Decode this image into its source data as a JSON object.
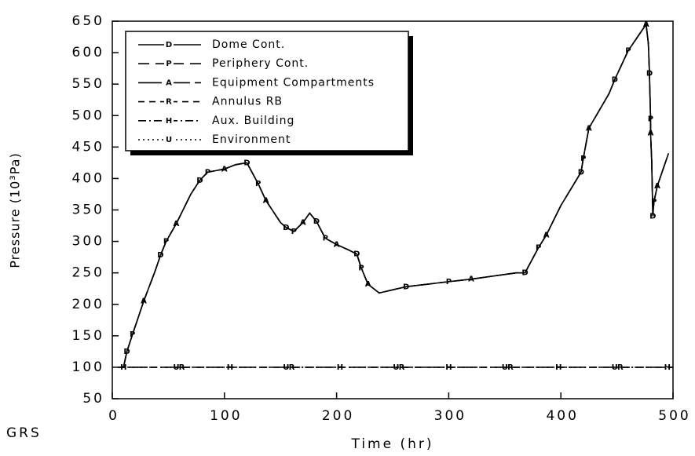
{
  "chart_data": {
    "type": "line",
    "xlabel": "Time (hr)",
    "ylabel": "Pressure (10³Pa)",
    "corner_text": "GRS",
    "xlim": [
      0,
      500
    ],
    "ylim": [
      50,
      650
    ],
    "xticks": [
      0,
      100,
      200,
      300,
      400,
      500
    ],
    "yticks": [
      50,
      100,
      150,
      200,
      250,
      300,
      350,
      400,
      450,
      500,
      550,
      600,
      650
    ],
    "legend": "upper left",
    "series": [
      {
        "name": "Dome Cont.",
        "marker": "D",
        "color": "#000000",
        "dash": "none",
        "x": [
          10,
          13,
          18,
          28,
          38,
          43,
          48,
          57,
          70,
          78,
          85,
          100,
          110,
          120,
          130,
          137,
          150,
          155,
          162,
          170,
          176,
          182,
          190,
          200,
          210,
          218,
          222,
          228,
          238,
          262,
          300,
          320,
          360,
          368,
          380,
          387,
          400,
          418,
          420,
          425,
          443,
          448,
          460,
          476,
          478,
          479,
          480,
          480,
          481,
          482,
          483,
          486,
          496
        ],
        "values": [
          100,
          125,
          152,
          205,
          252,
          278,
          300,
          328,
          375,
          397,
          410,
          415,
          422,
          425,
          392,
          365,
          330,
          322,
          316,
          330,
          345,
          332,
          305,
          295,
          287,
          280,
          258,
          232,
          218,
          228,
          236,
          240,
          250,
          250,
          290,
          310,
          357,
          410,
          432,
          480,
          535,
          557,
          603,
          645,
          615,
          567,
          495,
          472,
          428,
          340,
          363,
          388,
          440
        ]
      },
      {
        "name": "Periphery Cont.",
        "marker": "P",
        "color": "#000000",
        "dash": "14 8",
        "x": [
          10,
          13,
          18,
          28,
          38,
          43,
          48,
          57,
          70,
          78,
          85,
          100,
          110,
          120,
          130,
          137,
          150,
          155,
          162,
          170,
          176,
          182,
          190,
          200,
          210,
          218,
          222,
          228,
          238,
          262,
          300,
          320,
          360,
          368,
          380,
          387,
          400,
          418,
          420,
          425,
          443,
          448,
          460,
          476,
          478,
          479,
          480,
          480,
          481,
          482,
          483,
          486,
          496
        ],
        "values": [
          100,
          125,
          152,
          205,
          252,
          278,
          300,
          328,
          375,
          397,
          410,
          415,
          422,
          425,
          392,
          365,
          330,
          322,
          316,
          330,
          345,
          332,
          305,
          295,
          287,
          280,
          258,
          232,
          218,
          228,
          236,
          240,
          250,
          250,
          290,
          310,
          357,
          410,
          432,
          480,
          535,
          557,
          603,
          645,
          615,
          567,
          495,
          472,
          428,
          340,
          363,
          388,
          440
        ]
      },
      {
        "name": "Equipment Compartments",
        "marker": "A",
        "color": "#000000",
        "dash": "30 6",
        "x": [
          10,
          13,
          18,
          28,
          38,
          43,
          48,
          57,
          70,
          78,
          85,
          100,
          110,
          120,
          130,
          137,
          150,
          155,
          162,
          170,
          176,
          182,
          190,
          200,
          210,
          218,
          222,
          228,
          238,
          262,
          300,
          320,
          360,
          368,
          380,
          387,
          400,
          418,
          420,
          425,
          443,
          448,
          460,
          476,
          478,
          479,
          480,
          480,
          481,
          482,
          483,
          486,
          496
        ],
        "values": [
          100,
          125,
          152,
          205,
          252,
          278,
          300,
          328,
          375,
          397,
          410,
          415,
          422,
          425,
          392,
          365,
          330,
          322,
          316,
          330,
          345,
          332,
          305,
          295,
          287,
          280,
          258,
          232,
          218,
          228,
          236,
          240,
          250,
          250,
          290,
          310,
          357,
          410,
          432,
          480,
          535,
          557,
          603,
          645,
          615,
          567,
          495,
          472,
          428,
          340,
          363,
          388,
          440
        ]
      },
      {
        "name": "Annulus RB",
        "marker": "R",
        "color": "#000000",
        "dash": "8 6",
        "x": [
          5,
          62,
          160,
          258,
          355,
          453,
          500
        ],
        "values": [
          100,
          100,
          100,
          100,
          100,
          100,
          100
        ]
      },
      {
        "name": "Aux. Building",
        "marker": "H",
        "color": "#000000",
        "dash": "10 4 2 4",
        "x": [
          5,
          10,
          105,
          203,
          300,
          398,
          495,
          500
        ],
        "values": [
          100,
          100,
          100,
          100,
          100,
          100,
          100,
          100
        ]
      },
      {
        "name": "Environment",
        "marker": "U",
        "color": "#000000",
        "dash": "2 4",
        "x": [
          5,
          57,
          155,
          253,
          350,
          448,
          500
        ],
        "values": [
          100,
          100,
          100,
          100,
          100,
          100,
          100
        ]
      }
    ]
  }
}
